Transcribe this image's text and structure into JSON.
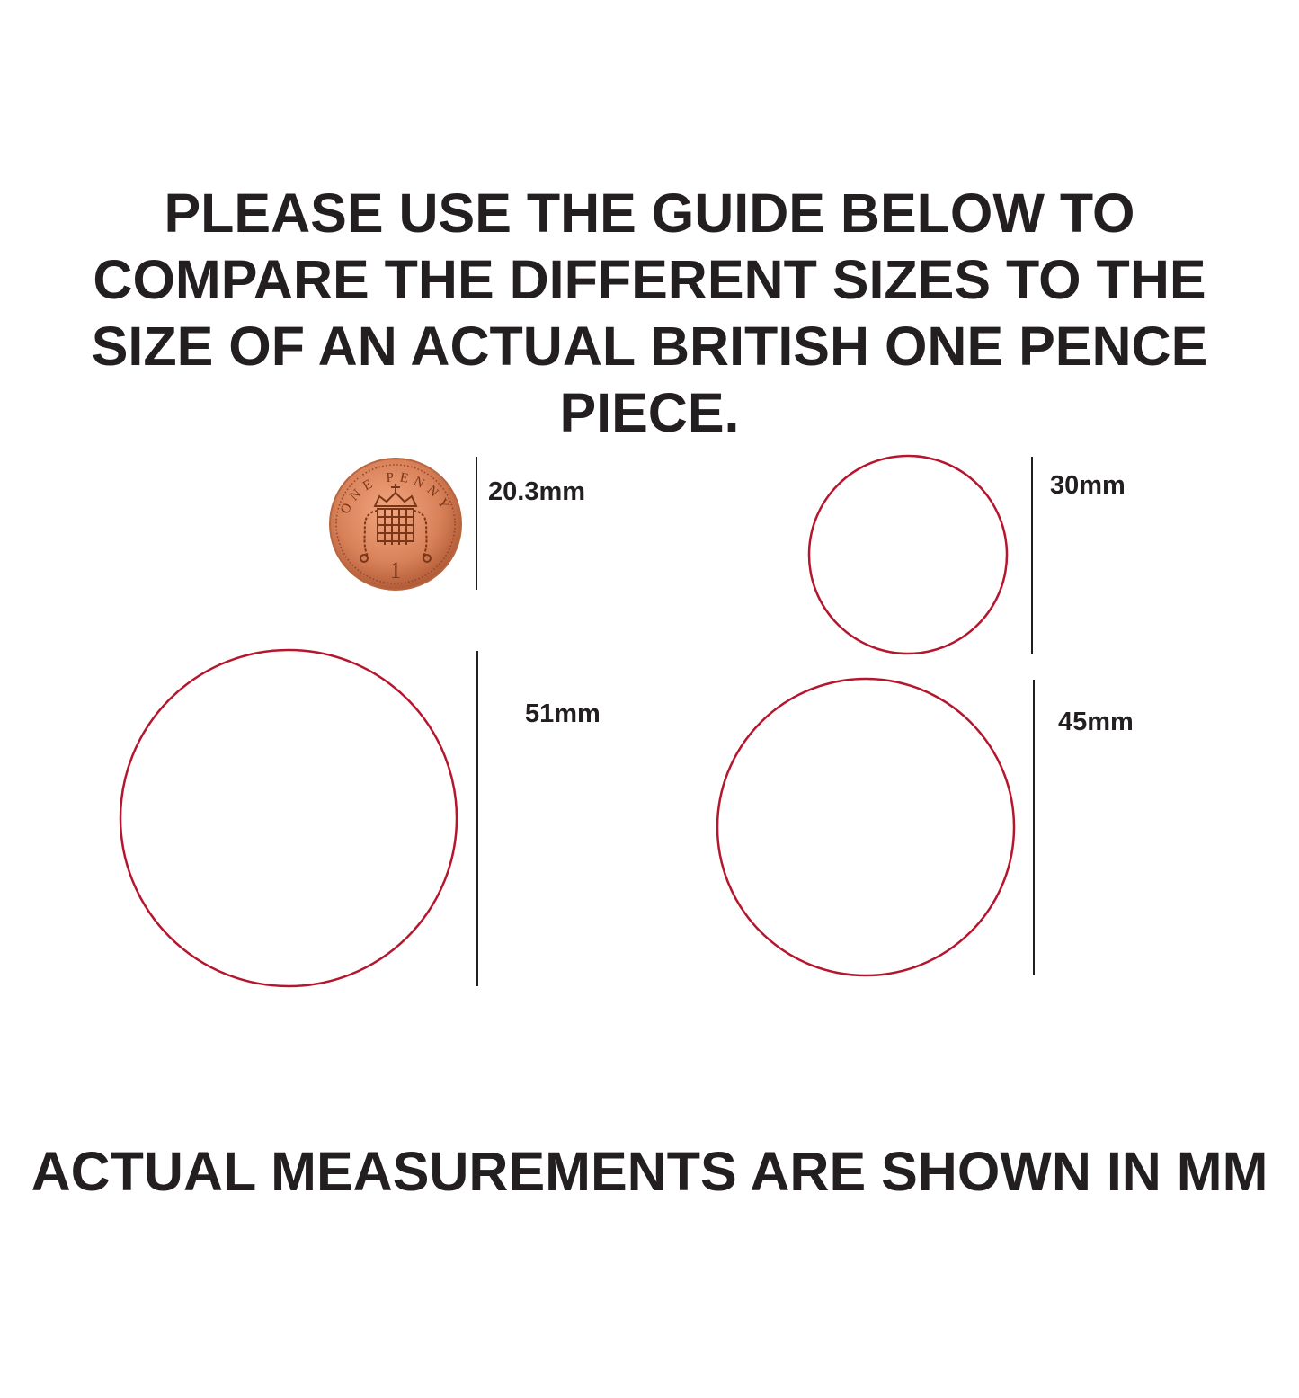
{
  "heading_lines": [
    "PLEASE USE THE GUIDE BELOW TO",
    "COMPARE THE DIFFERENT SIZES TO THE",
    "SIZE OF AN ACTUAL BRITISH ONE PENCE",
    "PIECE."
  ],
  "coin": {
    "inscription": "ONE PENNY",
    "value": "1",
    "label": "20.3mm"
  },
  "circles": [
    {
      "label": "30mm",
      "diameter_mm": 30
    },
    {
      "label": "51mm",
      "diameter_mm": 51
    },
    {
      "label": "45mm",
      "diameter_mm": 45
    }
  ],
  "footer": "ACTUAL MEASUREMENTS ARE SHOWN IN MM",
  "colors": {
    "text": "#231f20",
    "circle_outline": "#b5162e",
    "coin": "#d9825a"
  }
}
